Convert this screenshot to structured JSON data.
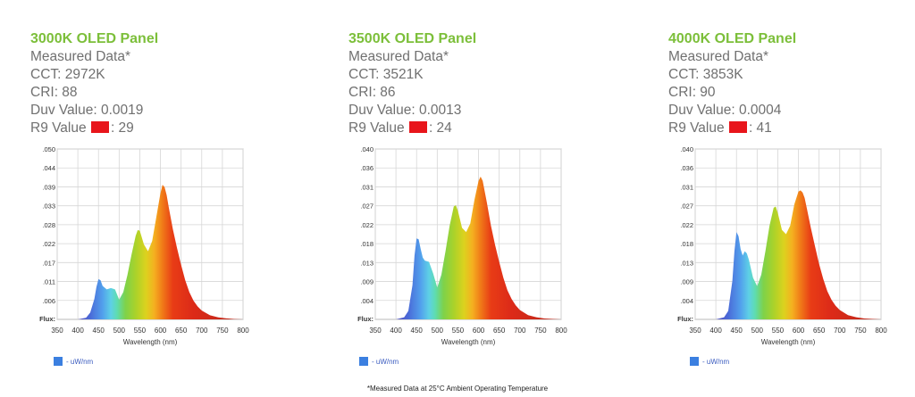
{
  "panels": [
    {
      "title": "3000K OLED Panel",
      "subtitle": "Measured Data*",
      "cct": "CCT: 2972K",
      "cri": "CRI: 88",
      "duv": "Duv Value: 0.0019",
      "r9_label": "R9 Value",
      "r9_value": ": 29",
      "legend": "- uW/nm"
    },
    {
      "title": "3500K OLED Panel",
      "subtitle": "Measured Data*",
      "cct": "CCT: 3521K",
      "cri": "CRI: 86",
      "duv": "Duv Value: 0.0013",
      "r9_label": "R9 Value",
      "r9_value": ": 24",
      "legend": "- uW/nm"
    },
    {
      "title": "4000K OLED Panel",
      "subtitle": "Measured Data*",
      "cct": "CCT: 3853K",
      "cri": "CRI: 90",
      "duv": "Duv Value: 0.0004",
      "r9_label": "R9 Value",
      "r9_value": ": 41",
      "legend": "- uW/nm"
    }
  ],
  "swatch_color": "#e8151b",
  "footnote": "*Measured Data at 25°C Ambient Operating Temperature",
  "chart_data": [
    {
      "type": "area",
      "xlabel": "Wavelength (nm)",
      "ylabel": "Flux:",
      "xlim": [
        350,
        800
      ],
      "ylim": [
        0,
        0.05
      ],
      "xticks": [
        350,
        400,
        450,
        500,
        550,
        600,
        650,
        700,
        750,
        800
      ],
      "yticks": [
        ".050",
        ".044",
        ".039",
        ".033",
        ".028",
        ".022",
        ".017",
        ".011",
        ".006"
      ],
      "series": [
        {
          "name": "- uW/nm",
          "x": [
            380,
            400,
            420,
            430,
            440,
            445,
            450,
            455,
            460,
            470,
            480,
            490,
            500,
            510,
            520,
            530,
            540,
            545,
            550,
            560,
            570,
            580,
            590,
            600,
            605,
            610,
            615,
            620,
            630,
            640,
            650,
            660,
            670,
            680,
            690,
            700,
            720,
            740,
            760,
            780,
            800
          ],
          "y": [
            0,
            0,
            0.0005,
            0.002,
            0.006,
            0.0095,
            0.0118,
            0.0115,
            0.0098,
            0.0088,
            0.0092,
            0.0088,
            0.0058,
            0.008,
            0.013,
            0.019,
            0.0245,
            0.0262,
            0.026,
            0.022,
            0.02,
            0.023,
            0.03,
            0.037,
            0.0395,
            0.0388,
            0.0365,
            0.033,
            0.0265,
            0.021,
            0.016,
            0.0115,
            0.008,
            0.0055,
            0.0038,
            0.0026,
            0.0012,
            0.0006,
            0.0003,
            0.0001,
            0
          ]
        }
      ]
    },
    {
      "type": "area",
      "xlabel": "Wavelength (nm)",
      "ylabel": "Flux:",
      "xlim": [
        350,
        800
      ],
      "ylim": [
        0,
        0.04
      ],
      "xticks": [
        350,
        400,
        450,
        500,
        550,
        600,
        650,
        700,
        750,
        800
      ],
      "yticks": [
        ".040",
        ".036",
        ".031",
        ".027",
        ".022",
        ".018",
        ".013",
        ".009",
        ".004"
      ],
      "series": [
        {
          "name": "- uW/nm",
          "x": [
            380,
            400,
            420,
            430,
            440,
            445,
            450,
            455,
            460,
            465,
            470,
            480,
            490,
            500,
            510,
            520,
            530,
            540,
            545,
            550,
            560,
            570,
            580,
            590,
            600,
            605,
            610,
            615,
            620,
            630,
            640,
            650,
            660,
            670,
            680,
            690,
            700,
            720,
            740,
            760,
            780,
            800
          ],
          "y": [
            0,
            0,
            0.0005,
            0.002,
            0.008,
            0.015,
            0.019,
            0.0188,
            0.0165,
            0.0145,
            0.0138,
            0.0135,
            0.0108,
            0.0075,
            0.0105,
            0.016,
            0.022,
            0.0265,
            0.0268,
            0.0255,
            0.0215,
            0.0205,
            0.0225,
            0.028,
            0.0325,
            0.0335,
            0.0325,
            0.03,
            0.0275,
            0.022,
            0.0175,
            0.0135,
            0.0098,
            0.0068,
            0.0048,
            0.0033,
            0.0022,
            0.001,
            0.0005,
            0.0002,
            0.0001,
            0
          ]
        }
      ]
    },
    {
      "type": "area",
      "xlabel": "Wavelength (nm)",
      "ylabel": "Flux:",
      "xlim": [
        350,
        800
      ],
      "ylim": [
        0,
        0.04
      ],
      "xticks": [
        350,
        400,
        450,
        500,
        550,
        600,
        650,
        700,
        750,
        800
      ],
      "yticks": [
        ".040",
        ".036",
        ".031",
        ".027",
        ".022",
        ".018",
        ".013",
        ".009",
        ".004"
      ],
      "series": [
        {
          "name": "- uW/nm",
          "x": [
            380,
            400,
            420,
            430,
            440,
            445,
            450,
            455,
            460,
            465,
            470,
            475,
            480,
            490,
            500,
            510,
            520,
            530,
            540,
            545,
            550,
            560,
            570,
            580,
            590,
            600,
            605,
            610,
            615,
            620,
            630,
            640,
            650,
            660,
            670,
            680,
            690,
            700,
            720,
            740,
            760,
            780,
            800
          ],
          "y": [
            0,
            0,
            0.0005,
            0.002,
            0.009,
            0.016,
            0.0205,
            0.0195,
            0.0165,
            0.015,
            0.016,
            0.0155,
            0.014,
            0.0098,
            0.0078,
            0.0105,
            0.016,
            0.022,
            0.0262,
            0.0265,
            0.025,
            0.021,
            0.02,
            0.022,
            0.027,
            0.03,
            0.0303,
            0.0298,
            0.0285,
            0.0262,
            0.0215,
            0.0172,
            0.013,
            0.0095,
            0.0066,
            0.0046,
            0.0032,
            0.0022,
            0.001,
            0.0005,
            0.0002,
            0.0001,
            0
          ]
        }
      ]
    }
  ]
}
